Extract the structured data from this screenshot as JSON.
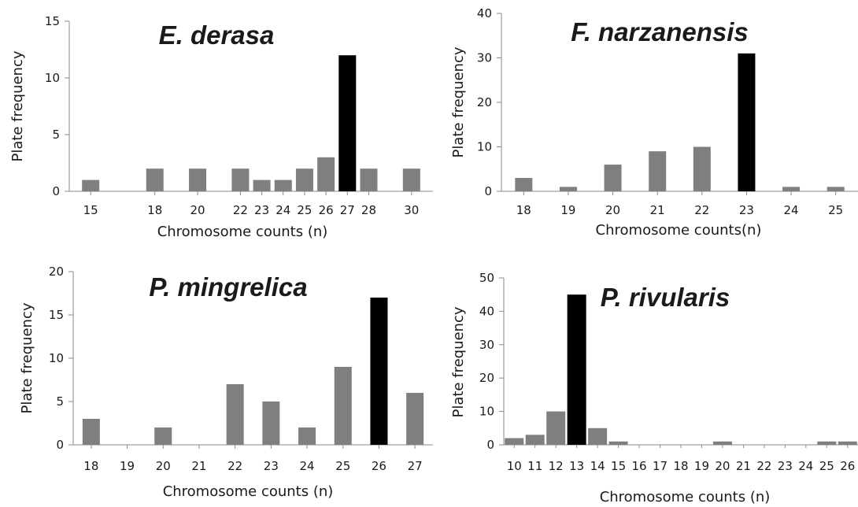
{
  "chart_data": [
    {
      "type": "bar",
      "title": "E. derasa",
      "xlabel": "Chromosome counts (n)",
      "ylabel": "Plate frequency",
      "ylim": [
        0,
        15
      ],
      "yticks": [
        0,
        5,
        10,
        15
      ],
      "x_range": [
        14,
        31
      ],
      "xticks": [
        15,
        18,
        20,
        22,
        23,
        24,
        25,
        26,
        27,
        28,
        30
      ],
      "x": [
        15,
        18,
        20,
        22,
        23,
        24,
        25,
        26,
        27,
        28,
        30
      ],
      "values": [
        1,
        2,
        2,
        2,
        1,
        1,
        2,
        3,
        12,
        2,
        2
      ],
      "highlight": 27,
      "colors": {
        "bar": "#7f7f7f",
        "highlight": "#000000"
      }
    },
    {
      "type": "bar",
      "title": "F. narzanensis",
      "xlabel": "Chromosome counts(n)",
      "ylabel": "Plate frequency",
      "ylim": [
        0,
        40
      ],
      "yticks": [
        0,
        10,
        20,
        30,
        40
      ],
      "x_range": [
        17.5,
        25.5
      ],
      "xticks": [
        18,
        19,
        20,
        21,
        22,
        23,
        24,
        25
      ],
      "x": [
        18,
        19,
        20,
        21,
        22,
        23,
        24,
        25
      ],
      "values": [
        3,
        1,
        6,
        9,
        10,
        31,
        1,
        1
      ],
      "highlight": 23,
      "colors": {
        "bar": "#7f7f7f",
        "highlight": "#000000"
      }
    },
    {
      "type": "bar",
      "title": "P. mingrelica",
      "xlabel": "Chromosome counts (n)",
      "ylabel": "Plate frequency",
      "ylim": [
        0,
        20
      ],
      "yticks": [
        0,
        5,
        10,
        15,
        20
      ],
      "x_range": [
        17.5,
        27.5
      ],
      "xticks": [
        18,
        19,
        20,
        21,
        22,
        23,
        24,
        25,
        26,
        27
      ],
      "x": [
        18,
        19,
        20,
        21,
        22,
        23,
        24,
        25,
        26,
        27
      ],
      "values": [
        3,
        0,
        2,
        0,
        7,
        5,
        2,
        9,
        17,
        6
      ],
      "highlight": 26,
      "colors": {
        "bar": "#7f7f7f",
        "highlight": "#000000"
      }
    },
    {
      "type": "bar",
      "title": "P. rivularis",
      "xlabel": "Chromosome counts (n)",
      "ylabel": "Plate frequency",
      "ylim": [
        0,
        50
      ],
      "yticks": [
        0,
        10,
        20,
        30,
        40,
        50
      ],
      "x_range": [
        9.5,
        26.5
      ],
      "xticks": [
        10,
        11,
        12,
        13,
        14,
        15,
        16,
        17,
        18,
        19,
        20,
        21,
        22,
        23,
        24,
        25,
        26
      ],
      "x": [
        10,
        11,
        12,
        13,
        14,
        15,
        16,
        17,
        18,
        19,
        20,
        21,
        22,
        23,
        24,
        25,
        26
      ],
      "values": [
        2,
        3,
        10,
        45,
        5,
        1,
        0,
        0,
        0,
        0,
        1,
        0,
        0,
        0,
        0,
        1,
        1
      ],
      "highlight": 13,
      "colors": {
        "bar": "#7f7f7f",
        "highlight": "#000000"
      }
    }
  ]
}
